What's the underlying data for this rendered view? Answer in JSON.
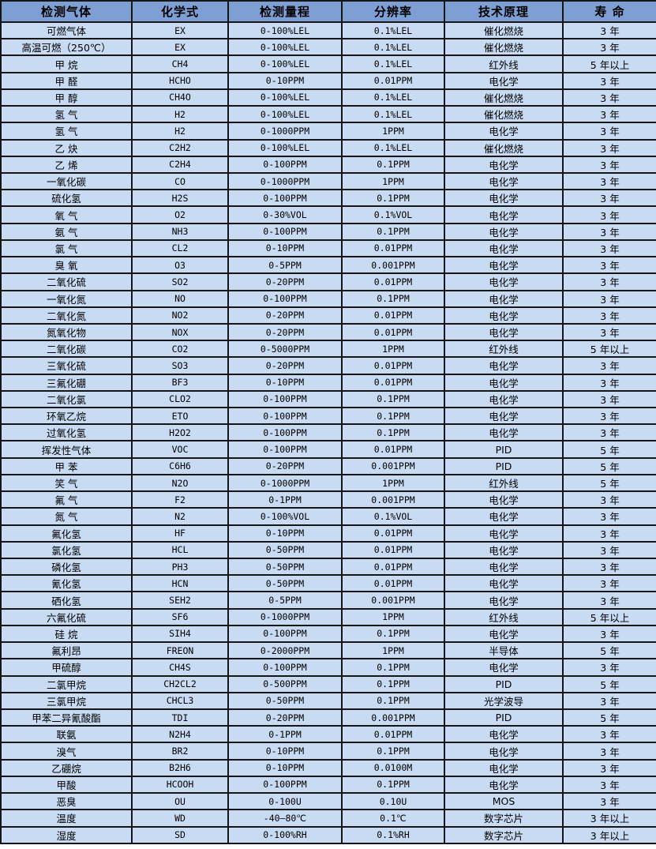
{
  "colors": {
    "header_bg": "#7f9fd4",
    "row_bg": "#c9dbf2",
    "border": "#161616",
    "text": "#000000"
  },
  "table": {
    "columns": [
      "检测气体",
      "化学式",
      "检测量程",
      "分辨率",
      "技术原理",
      "寿 命"
    ],
    "column_keys": [
      "gas-name-cell",
      "formula-cell",
      "range-cell",
      "resolution-cell",
      "principle-cell",
      "lifespan-cell"
    ],
    "rows": [
      [
        "可燃气体",
        "EX",
        "0-100%LEL",
        "0.1%LEL",
        "催化燃烧",
        "3 年"
      ],
      [
        "高温可燃（250℃）",
        "EX",
        "0-100%LEL",
        "0.1%LEL",
        "催化燃烧",
        "3 年"
      ],
      [
        "甲 烷",
        "CH4",
        "0-100%LEL",
        "0.1%LEL",
        "红外线",
        "5 年以上"
      ],
      [
        "甲 醛",
        "HCHO",
        "0-10PPM",
        "0.01PPM",
        "电化学",
        "3 年"
      ],
      [
        "甲 醇",
        "CH4O",
        "0-100%LEL",
        "0.1%LEL",
        "催化燃烧",
        "3 年"
      ],
      [
        "氢 气",
        "H2",
        "0-100%LEL",
        "0.1%LEL",
        "催化燃烧",
        "3 年"
      ],
      [
        "氢 气",
        "H2",
        "0-1000PPM",
        "1PPM",
        "电化学",
        "3 年"
      ],
      [
        "乙 炔",
        "C2H2",
        "0-100%LEL",
        "0.1%LEL",
        "催化燃烧",
        "3 年"
      ],
      [
        "乙 烯",
        "C2H4",
        "0-100PPM",
        "0.1PPM",
        "电化学",
        "3 年"
      ],
      [
        "一氧化碳",
        "CO",
        "0-1000PPM",
        "1PPM",
        "电化学",
        "3 年"
      ],
      [
        "硫化氢",
        "H2S",
        "0-100PPM",
        "0.1PPM",
        "电化学",
        "3 年"
      ],
      [
        "氧 气",
        "O2",
        "0-30%VOL",
        "0.1%VOL",
        "电化学",
        "3 年"
      ],
      [
        "氨 气",
        "NH3",
        "0-100PPM",
        "0.1PPM",
        "电化学",
        "3 年"
      ],
      [
        "氯 气",
        "CL2",
        "0-10PPM",
        "0.01PPM",
        "电化学",
        "3 年"
      ],
      [
        "臭 氧",
        "O3",
        "0-5PPM",
        "0.001PPM",
        "电化学",
        "3 年"
      ],
      [
        "二氧化硫",
        "SO2",
        "0-20PPM",
        "0.01PPM",
        "电化学",
        "3 年"
      ],
      [
        "一氧化氮",
        "NO",
        "0-100PPM",
        "0.1PPM",
        "电化学",
        "3 年"
      ],
      [
        "二氧化氮",
        "NO2",
        "0-20PPM",
        "0.01PPM",
        "电化学",
        "3 年"
      ],
      [
        "氮氧化物",
        "NOX",
        "0-20PPM",
        "0.01PPM",
        "电化学",
        "3 年"
      ],
      [
        "二氧化碳",
        "CO2",
        "0-5000PPM",
        "1PPM",
        "红外线",
        "5 年以上"
      ],
      [
        "三氧化硫",
        "SO3",
        "0-20PPM",
        "0.01PPM",
        "电化学",
        "3 年"
      ],
      [
        "三氟化硼",
        "BF3",
        "0-10PPM",
        "0.01PPM",
        "电化学",
        "3 年"
      ],
      [
        "二氧化氯",
        "CLO2",
        "0-100PPM",
        "0.1PPM",
        "电化学",
        "3 年"
      ],
      [
        "环氧乙烷",
        "ETO",
        "0-100PPM",
        "0.1PPM",
        "电化学",
        "3 年"
      ],
      [
        "过氧化氢",
        "H2O2",
        "0-100PPM",
        "0.1PPM",
        "电化学",
        "3 年"
      ],
      [
        "挥发性气体",
        "VOC",
        "0-100PPM",
        "0.01PPM",
        "PID",
        "5 年"
      ],
      [
        "甲 苯",
        "C6H6",
        "0-20PPM",
        "0.001PPM",
        "PID",
        "5 年"
      ],
      [
        "笑 气",
        "N2O",
        "0-1000PPM",
        "1PPM",
        "红外线",
        "5 年"
      ],
      [
        "氟 气",
        "F2",
        "0-1PPM",
        "0.001PPM",
        "电化学",
        "3 年"
      ],
      [
        "氮 气",
        "N2",
        "0-100%VOL",
        "0.1%VOL",
        "电化学",
        "3 年"
      ],
      [
        "氟化氢",
        "HF",
        "0-10PPM",
        "0.01PPM",
        "电化学",
        "3 年"
      ],
      [
        "氯化氢",
        "HCL",
        "0-50PPM",
        "0.01PPM",
        "电化学",
        "3 年"
      ],
      [
        "磷化氢",
        "PH3",
        "0-50PPM",
        "0.01PPM",
        "电化学",
        "3 年"
      ],
      [
        "氰化氢",
        "HCN",
        "0-50PPM",
        "0.01PPM",
        "电化学",
        "3 年"
      ],
      [
        "硒化氢",
        "SEH2",
        "0-5PPM",
        "0.001PPM",
        "电化学",
        "3 年"
      ],
      [
        "六氟化硫",
        "SF6",
        "0-1000PPM",
        "1PPM",
        "红外线",
        "5 年以上"
      ],
      [
        "硅 烷",
        "SIH4",
        "0-100PPM",
        "0.1PPM",
        "电化学",
        "3 年"
      ],
      [
        "氟利昂",
        "FREON",
        "0-2000PPM",
        "1PPM",
        "半导体",
        "5 年"
      ],
      [
        "甲硫醇",
        "CH4S",
        "0-100PPM",
        "0.1PPM",
        "电化学",
        "3 年"
      ],
      [
        "二氯甲烷",
        "CH2CL2",
        "0-500PPM",
        "0.1PPM",
        "PID",
        "5 年"
      ],
      [
        "三氯甲烷",
        "CHCL3",
        "0-50PPM",
        "0.1PPM",
        "光学波导",
        "3 年"
      ],
      [
        "甲苯二异氰酸酯",
        "TDI",
        "0-20PPM",
        "0.001PPM",
        "PID",
        "5 年"
      ],
      [
        "联氨",
        "N2H4",
        "0-1PPM",
        "0.01PPM",
        "电化学",
        "3 年"
      ],
      [
        "溴气",
        "BR2",
        "0-10PPM",
        "0.1PPM",
        "电化学",
        "3 年"
      ],
      [
        "乙硼烷",
        "B2H6",
        "0-10PPM",
        "0.0100M",
        "电化学",
        "3 年"
      ],
      [
        "甲酸",
        "HCOOH",
        "0-100PPM",
        "0.1PPM",
        "电化学",
        "3 年"
      ],
      [
        "恶臭",
        "OU",
        "0-100U",
        "0.10U",
        "MOS",
        "3 年"
      ],
      [
        "温度",
        "WD",
        "-40—80℃",
        "0.1℃",
        "数字芯片",
        "3 年以上"
      ],
      [
        "湿度",
        "SD",
        "0-100%RH",
        "0.1%RH",
        "数字芯片",
        "3 年以上"
      ]
    ]
  }
}
